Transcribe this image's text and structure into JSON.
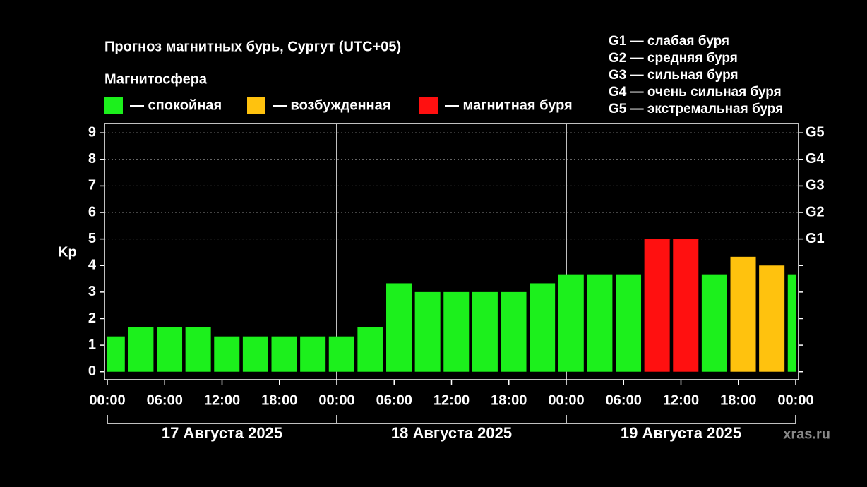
{
  "chart_data": {
    "type": "bar",
    "title": "Прогноз магнитных бурь, Сургут (UTC+05)",
    "legend_title": "Магнитосфера",
    "legend": [
      {
        "name": "— спокойная",
        "color": "#1cf01c"
      },
      {
        "name": "— возбужденная",
        "color": "#ffc20e"
      },
      {
        "name": "— магнитная буря",
        "color": "#ff1010"
      }
    ],
    "storm_levels": [
      "G1 — слабая буря",
      "G2 — средняя буря",
      "G3 — сильная буря",
      "G4 — очень сильная буря",
      "G5 — экстремальная буря"
    ],
    "y_label": "Kp",
    "x": [
      0.5,
      3.5,
      6.5,
      9.5,
      12.5,
      15.5,
      18.5,
      21.5,
      24.5,
      27.5,
      30.5,
      33.5,
      36.5,
      39.5,
      42.5,
      45.5,
      48.5,
      51.5,
      54.5,
      57.5,
      60.5,
      63.5,
      66.5,
      69.5,
      72.5
    ],
    "values": [
      1.33,
      1.67,
      1.67,
      1.67,
      1.33,
      1.33,
      1.33,
      1.33,
      1.33,
      1.67,
      3.33,
      3,
      3,
      3,
      3,
      3.33,
      3.67,
      3.67,
      3.67,
      5,
      5,
      3.67,
      4.33,
      4,
      3.67
    ],
    "colors": [
      "#1cf01c",
      "#1cf01c",
      "#1cf01c",
      "#1cf01c",
      "#1cf01c",
      "#1cf01c",
      "#1cf01c",
      "#1cf01c",
      "#1cf01c",
      "#1cf01c",
      "#1cf01c",
      "#1cf01c",
      "#1cf01c",
      "#1cf01c",
      "#1cf01c",
      "#1cf01c",
      "#1cf01c",
      "#1cf01c",
      "#1cf01c",
      "#ff1010",
      "#ff1010",
      "#1cf01c",
      "#ffc20e",
      "#ffc20e",
      "#1cf01c"
    ],
    "xlim": [
      0,
      72
    ],
    "xticks": [
      {
        "value": 0,
        "label": "00:00"
      },
      {
        "value": 6,
        "label": "06:00"
      },
      {
        "value": 12,
        "label": "12:00"
      },
      {
        "value": 18,
        "label": "18:00"
      },
      {
        "value": 24,
        "label": "00:00"
      },
      {
        "value": 30,
        "label": "06:00"
      },
      {
        "value": 36,
        "label": "12:00"
      },
      {
        "value": 42,
        "label": "18:00"
      },
      {
        "value": 48,
        "label": "00:00"
      },
      {
        "value": 54,
        "label": "06:00"
      },
      {
        "value": 60,
        "label": "12:00"
      },
      {
        "value": 66,
        "label": "18:00"
      },
      {
        "value": 72,
        "label": "00:00"
      }
    ],
    "day_separators": [
      24,
      48
    ],
    "date_labels": [
      "17 Августа 2025",
      "18 Августа 2025",
      "19 Августа 2025"
    ],
    "ylim": [
      -0.3,
      9.35
    ],
    "yticks": [
      0,
      1,
      2,
      3,
      4,
      5,
      6,
      7,
      8,
      9
    ],
    "y2lim": [
      -0.3,
      9.35
    ],
    "y2ticks": [
      {
        "value": 5,
        "label": "G1"
      },
      {
        "value": 6,
        "label": "G2"
      },
      {
        "value": 7,
        "label": "G3"
      },
      {
        "value": 8,
        "label": "G4"
      },
      {
        "value": 9,
        "label": "G5"
      }
    ],
    "grid": true,
    "watermark": "xras.ru"
  }
}
